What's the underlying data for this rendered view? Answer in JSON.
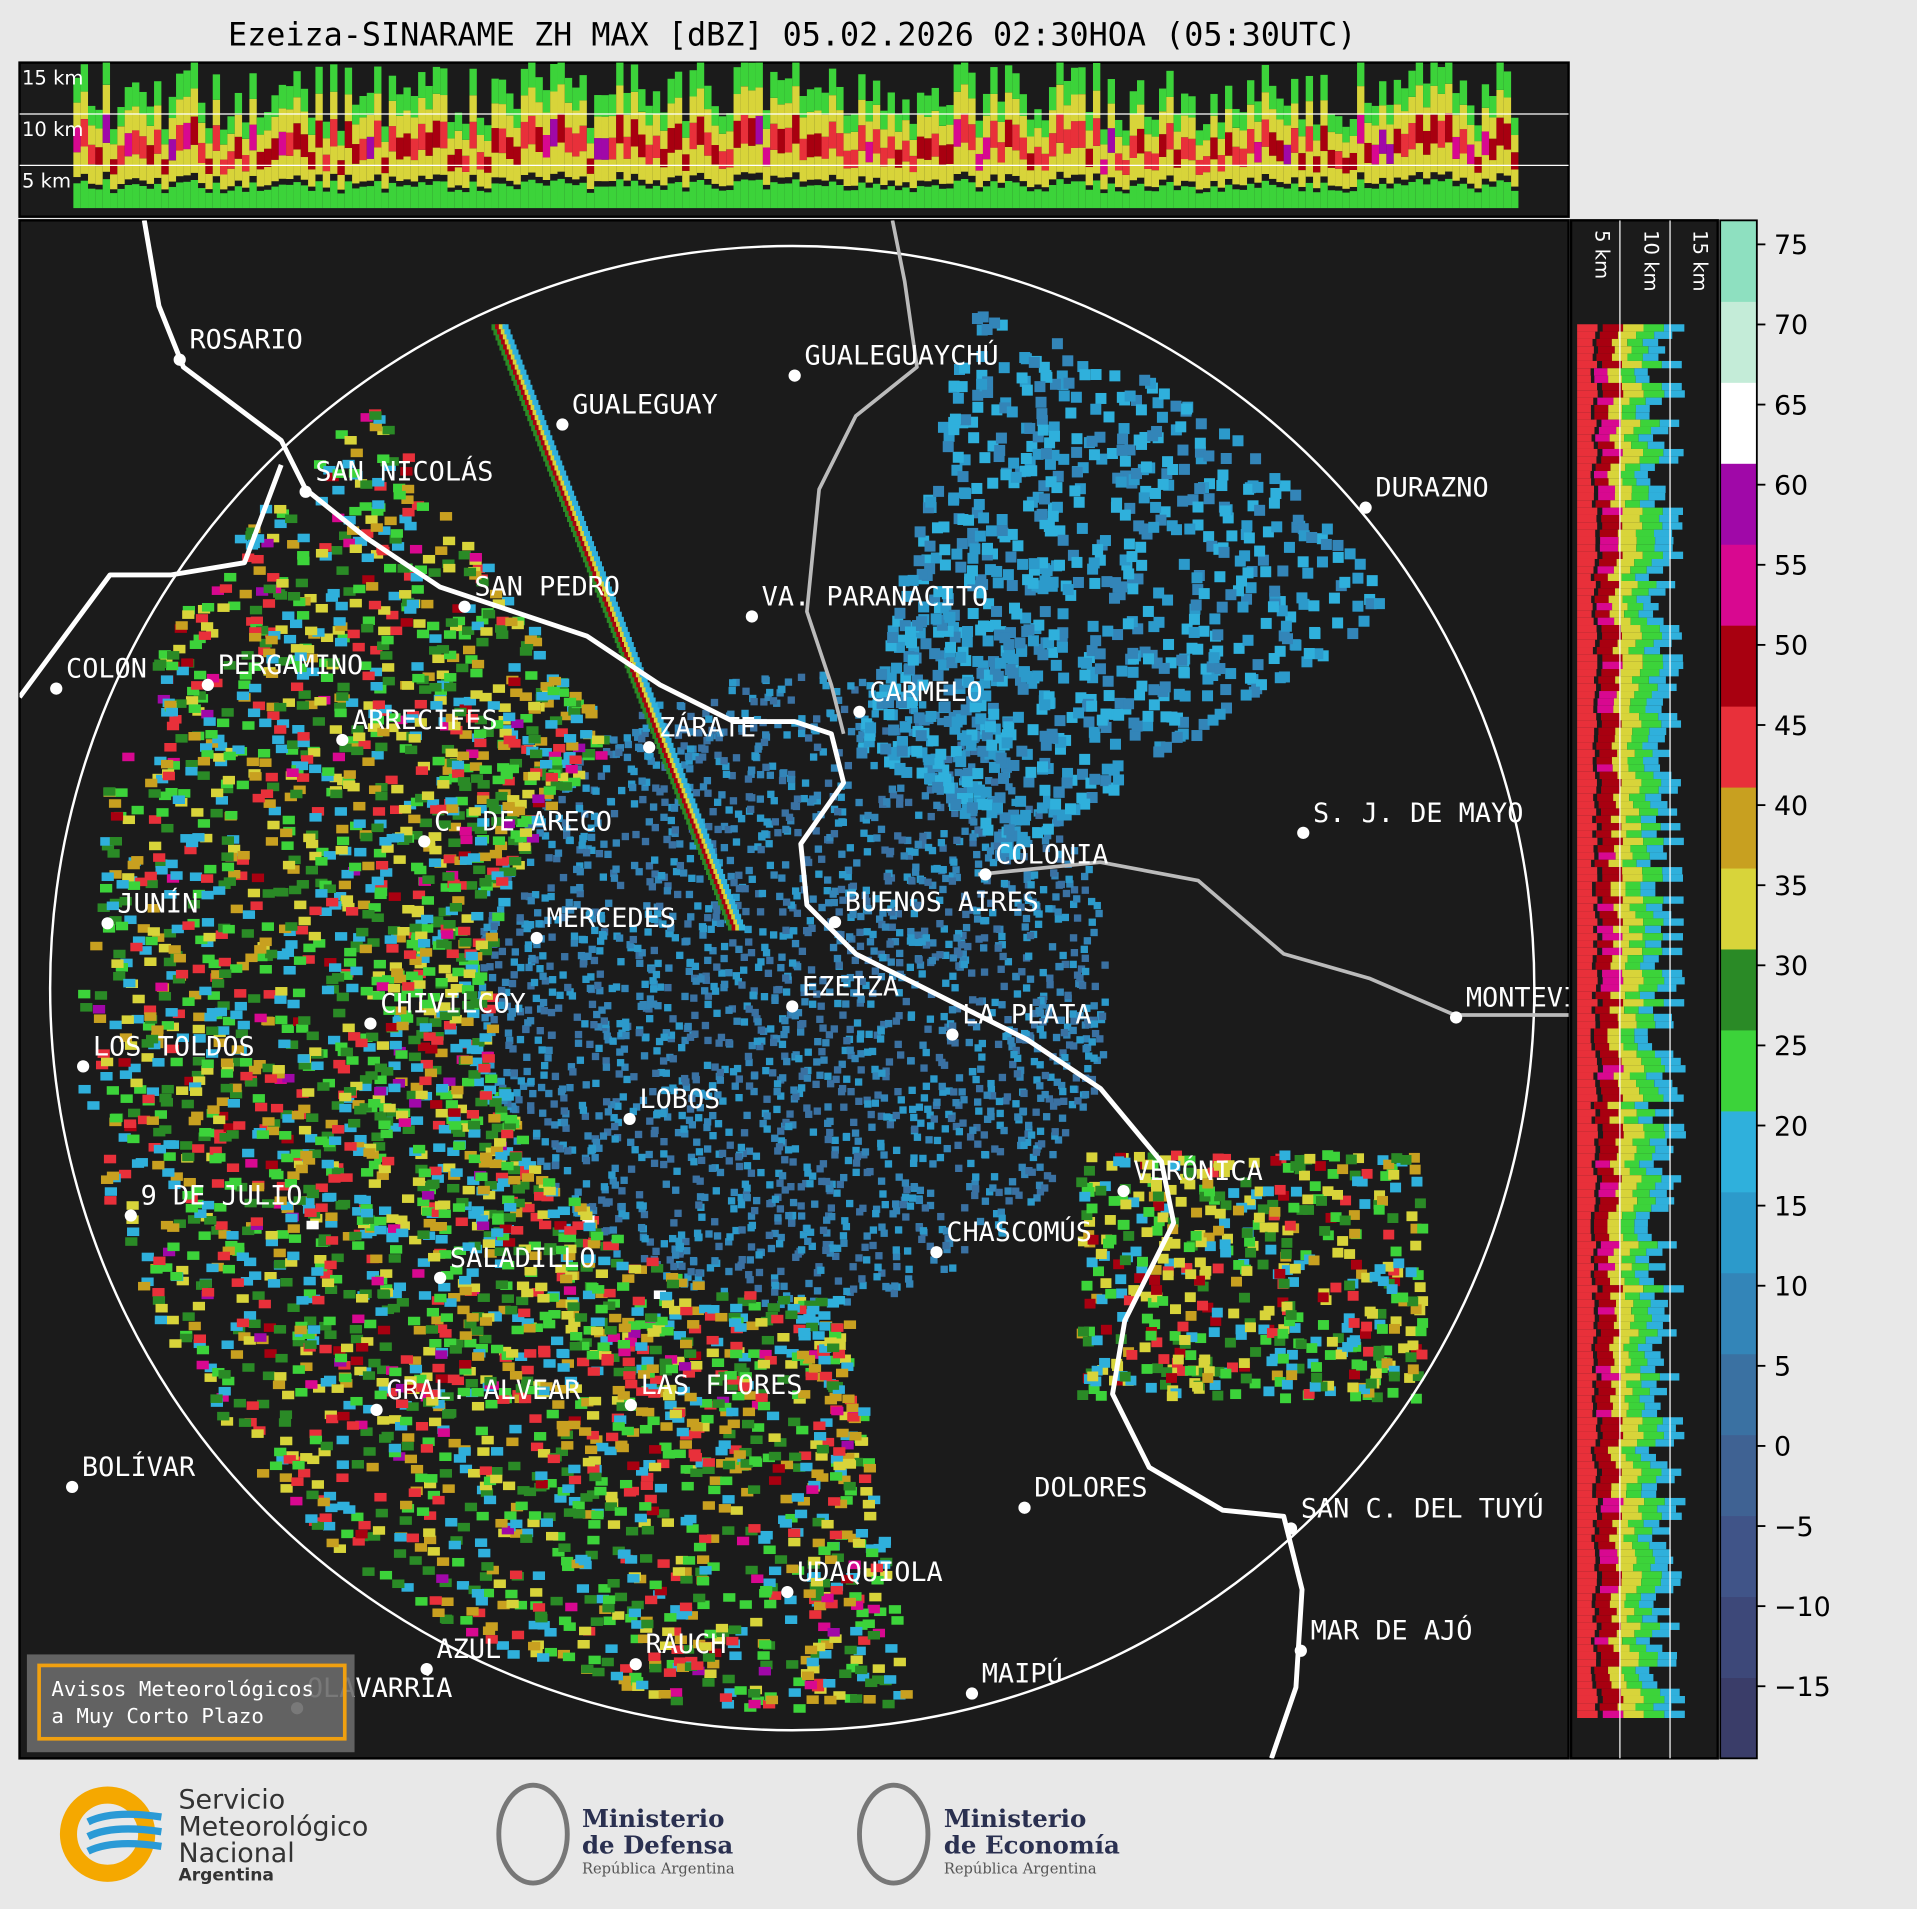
{
  "title": "Ezeiza-SINARAME ZH MAX [dBZ] 05.02.2026 02:30HOA (05:30UTC)",
  "cross_section_top": {
    "height_labels": [
      "15 km",
      "10 km",
      "5 km"
    ]
  },
  "cross_section_right": {
    "height_labels": [
      "5 km",
      "10 km",
      "15 km"
    ]
  },
  "colorbar": {
    "lim": [
      -19.5,
      76.5
    ],
    "ticks": [
      {
        "value": -15,
        "label": "−15"
      },
      {
        "value": -10,
        "label": "−10"
      },
      {
        "value": -5,
        "label": "−5"
      },
      0,
      5,
      10,
      15,
      20,
      25,
      30,
      35,
      40,
      45,
      50,
      55,
      60,
      65,
      70,
      75
    ],
    "colors": [
      "#3a3d69",
      "#3d4879",
      "#405488",
      "#3f6293",
      "#3a71a2",
      "#3385b8",
      "#2c9acb",
      "#2fb0dc",
      "#3cd33a",
      "#2a8a26",
      "#d8d43a",
      "#c8a020",
      "#e8303a",
      "#a80010",
      "#d80890",
      "#a008a8",
      "#ffffff",
      "#c4ecd8",
      "#8ee0c0"
    ]
  },
  "cities": [
    {
      "label": "ROSARIO"
    },
    {
      "label": "GUALEGUAYCHÚ"
    },
    {
      "label": "GUALEGUAY"
    },
    {
      "label": "SAN NICOLÁS"
    },
    {
      "label": "DURAZNO"
    },
    {
      "label": "SAN PEDRO"
    },
    {
      "label": "VA. PARANACITO"
    },
    {
      "label": "COLON"
    },
    {
      "label": "PERGAMINO"
    },
    {
      "label": "CARMELO"
    },
    {
      "label": "ARRECIFES"
    },
    {
      "label": "ZÁRATE"
    },
    {
      "label": "S. J. DE MAYO"
    },
    {
      "label": "C. DE ARECO"
    },
    {
      "label": "COLONIA"
    },
    {
      "label": "JUNÍN"
    },
    {
      "label": "BUENOS AIRES"
    },
    {
      "label": "MERCEDES"
    },
    {
      "label": "MONTEVIDEO"
    },
    {
      "label": "EZEIZA"
    },
    {
      "label": "CHIVILCOY"
    },
    {
      "label": "LA PLATA"
    },
    {
      "label": "LOS TOLDOS"
    },
    {
      "label": "LOBOS"
    },
    {
      "label": "VERÓNICA"
    },
    {
      "label": "9 DE JULIO"
    },
    {
      "label": "CHASCOMÚS"
    },
    {
      "label": "SALADILLO"
    },
    {
      "label": "GRAL. ALVEAR"
    },
    {
      "label": "LAS FLORES"
    },
    {
      "label": "BOLÍVAR"
    },
    {
      "label": "DOLORES"
    },
    {
      "label": "SAN C. DEL TUYÚ"
    },
    {
      "label": "UDAQUIOLA"
    },
    {
      "label": "MAR DE AJÓ"
    },
    {
      "label": "RAUCH"
    },
    {
      "label": "AZUL"
    },
    {
      "label": "OLAVARRÍA"
    },
    {
      "label": "MAIPÚ"
    }
  ],
  "warning_box": {
    "lines": [
      "Avisos Meteorológicos",
      "a Muy Corto Plazo"
    ]
  },
  "logos": {
    "smn": [
      "Servicio",
      "Meteorológico",
      "Nacional",
      "Argentina"
    ],
    "defensa": [
      "Ministerio",
      "de Defensa",
      "República Argentina"
    ],
    "economia": [
      "Ministerio",
      "de Economía",
      "República Argentina"
    ]
  }
}
